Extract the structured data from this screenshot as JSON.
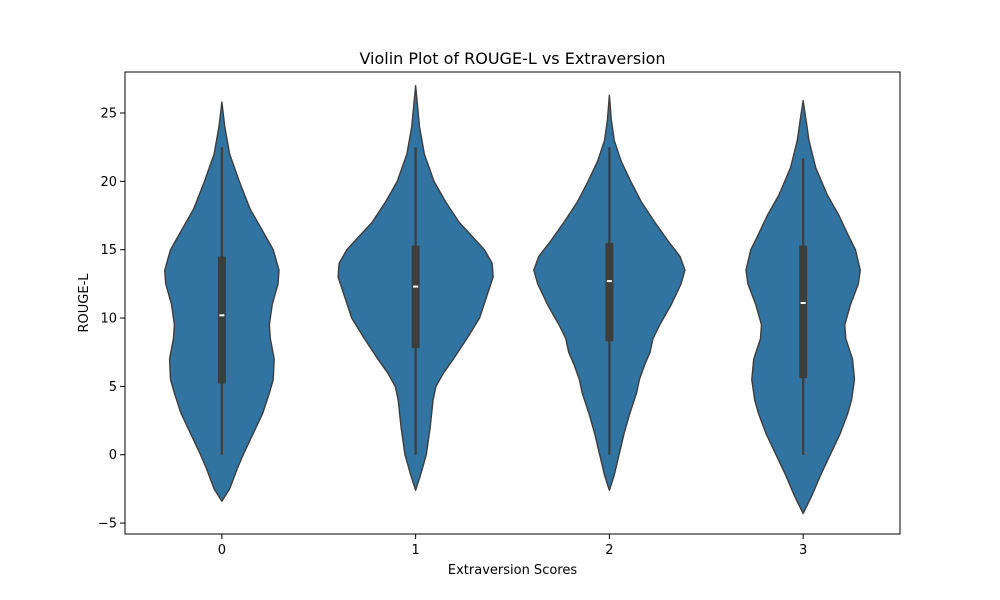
{
  "chart_data": {
    "type": "violin",
    "title": "Violin Plot of ROUGE-L vs Extraversion",
    "xlabel": "Extraversion Scores",
    "ylabel": "ROUGE-L",
    "categories": [
      "0",
      "1",
      "2",
      "3"
    ],
    "ylim": [
      -5.8,
      28.0
    ],
    "yticks": [
      -5,
      0,
      5,
      10,
      15,
      20,
      25
    ],
    "ytick_labels": [
      "−5",
      "0",
      "5",
      "10",
      "15",
      "20",
      "25"
    ],
    "grid": false,
    "colors": {
      "fill": "#3274a1",
      "edge": "#3d3d3d",
      "box": "#3d3d3d",
      "median": "#ffffff"
    },
    "violins": [
      {
        "category": "0",
        "min": 0.0,
        "q1": 5.2,
        "median": 10.2,
        "q3": 14.5,
        "whisker_high": 22.5,
        "density": [
          [
            -3.4,
            0.0
          ],
          [
            -2.5,
            0.08
          ],
          [
            -1.0,
            0.16
          ],
          [
            0.0,
            0.22
          ],
          [
            1.5,
            0.32
          ],
          [
            3.0,
            0.42
          ],
          [
            4.5,
            0.49
          ],
          [
            5.5,
            0.53
          ],
          [
            7.0,
            0.54
          ],
          [
            8.5,
            0.5
          ],
          [
            9.5,
            0.49
          ],
          [
            11.0,
            0.52
          ],
          [
            12.5,
            0.58
          ],
          [
            13.5,
            0.59
          ],
          [
            15.0,
            0.53
          ],
          [
            16.0,
            0.45
          ],
          [
            18.0,
            0.29
          ],
          [
            20.0,
            0.18
          ],
          [
            22.0,
            0.08
          ],
          [
            24.0,
            0.03
          ],
          [
            25.8,
            0.0
          ]
        ]
      },
      {
        "category": "1",
        "min": 0.0,
        "q1": 7.8,
        "median": 12.3,
        "q3": 15.3,
        "whisker_high": 22.5,
        "density": [
          [
            -2.6,
            0.0
          ],
          [
            -1.5,
            0.05
          ],
          [
            0.0,
            0.11
          ],
          [
            2.0,
            0.15
          ],
          [
            4.0,
            0.18
          ],
          [
            5.0,
            0.21
          ],
          [
            6.0,
            0.29
          ],
          [
            7.0,
            0.39
          ],
          [
            8.5,
            0.53
          ],
          [
            10.0,
            0.66
          ],
          [
            11.5,
            0.73
          ],
          [
            13.0,
            0.8
          ],
          [
            14.0,
            0.79
          ],
          [
            15.0,
            0.71
          ],
          [
            16.0,
            0.58
          ],
          [
            17.0,
            0.45
          ],
          [
            18.5,
            0.31
          ],
          [
            20.0,
            0.19
          ],
          [
            22.0,
            0.09
          ],
          [
            24.0,
            0.04
          ],
          [
            25.5,
            0.02
          ],
          [
            27.0,
            0.0
          ]
        ]
      },
      {
        "category": "2",
        "min": 0.0,
        "q1": 8.3,
        "median": 12.7,
        "q3": 15.5,
        "whisker_high": 22.5,
        "density": [
          [
            -2.6,
            0.0
          ],
          [
            -1.5,
            0.05
          ],
          [
            0.0,
            0.1
          ],
          [
            1.5,
            0.15
          ],
          [
            3.0,
            0.21
          ],
          [
            4.5,
            0.28
          ],
          [
            5.5,
            0.31
          ],
          [
            6.5,
            0.36
          ],
          [
            7.5,
            0.42
          ],
          [
            8.5,
            0.45
          ],
          [
            9.5,
            0.52
          ],
          [
            11.0,
            0.64
          ],
          [
            12.5,
            0.74
          ],
          [
            13.5,
            0.78
          ],
          [
            14.5,
            0.73
          ],
          [
            15.5,
            0.62
          ],
          [
            17.0,
            0.47
          ],
          [
            18.5,
            0.33
          ],
          [
            20.0,
            0.22
          ],
          [
            21.5,
            0.12
          ],
          [
            23.0,
            0.05
          ],
          [
            24.5,
            0.02
          ],
          [
            26.3,
            0.0
          ]
        ]
      },
      {
        "category": "3",
        "min": 0.0,
        "q1": 5.6,
        "median": 11.1,
        "q3": 15.3,
        "whisker_high": 21.7,
        "density": [
          [
            -4.3,
            0.0
          ],
          [
            -3.0,
            0.09
          ],
          [
            -1.5,
            0.18
          ],
          [
            0.0,
            0.28
          ],
          [
            1.5,
            0.38
          ],
          [
            3.0,
            0.46
          ],
          [
            4.0,
            0.5
          ],
          [
            5.5,
            0.53
          ],
          [
            7.0,
            0.51
          ],
          [
            8.5,
            0.44
          ],
          [
            9.5,
            0.43
          ],
          [
            11.0,
            0.49
          ],
          [
            12.5,
            0.57
          ],
          [
            13.5,
            0.59
          ],
          [
            15.0,
            0.54
          ],
          [
            16.0,
            0.47
          ],
          [
            17.5,
            0.37
          ],
          [
            19.0,
            0.25
          ],
          [
            21.0,
            0.13
          ],
          [
            23.0,
            0.06
          ],
          [
            24.5,
            0.03
          ],
          [
            25.9,
            0.0
          ]
        ]
      }
    ]
  }
}
